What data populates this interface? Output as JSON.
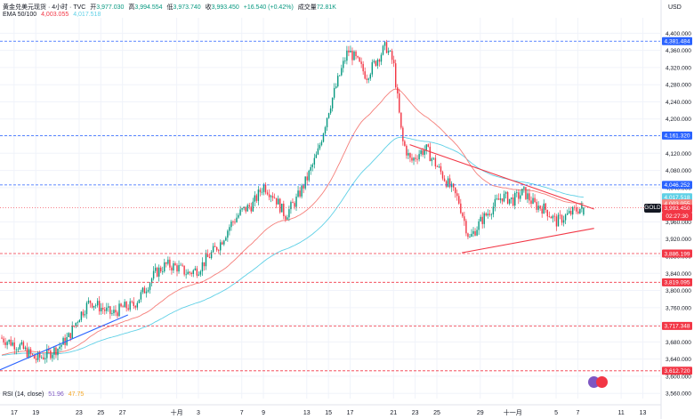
{
  "header": {
    "title": "黄金兑美元现货 · 4小时 · TVC",
    "ohlc": [
      {
        "label": "开",
        "value": "3,977.030"
      },
      {
        "label": "高",
        "value": "3,994.554"
      },
      {
        "label": "低",
        "value": "3,973.740"
      },
      {
        "label": "收",
        "value": "3,993.450"
      }
    ],
    "change": "+16.540 (+0.42%)",
    "volume_label": "成交量",
    "volume": "72.81K",
    "ema_label": "EMA 50/100",
    "ema_50": "4,003.055",
    "ema_100": "4,017.518"
  },
  "currency": "USD",
  "symbol_tag": "GOLD",
  "countdown": "02:27:30",
  "rsi": {
    "label": "RSI (14, close)",
    "value1": "51.96",
    "value2": "47.75"
  },
  "colors": {
    "up": "#089981",
    "down": "#f23645",
    "ema50": "#f57f7a",
    "ema100": "#5fd0e6",
    "blue": "#2962ff"
  },
  "chart_data": {
    "type": "candlestick",
    "y_ticks": [
      "4,400.000",
      "4,360.000",
      "4,320.000",
      "4,280.000",
      "4,240.000",
      "4,200.000",
      "4,160.000",
      "4,120.000",
      "4,080.000",
      "4,040.000",
      "3,960.000",
      "3,920.000",
      "3,880.000",
      "3,840.000",
      "3,800.000",
      "3,760.000",
      "3,720.000",
      "3,680.000",
      "3,640.000",
      "3,600.000",
      "3,560.000"
    ],
    "y_ticks_num": [
      4400,
      4360,
      4320,
      4280,
      4240,
      4200,
      4160,
      4120,
      4080,
      4040,
      3960,
      3920,
      3880,
      3840,
      3800,
      3760,
      3720,
      3680,
      3640,
      3600,
      3560
    ],
    "ylim": [
      3548,
      4436
    ],
    "x_ticks": [
      "17",
      "19",
      "23",
      "25",
      "27",
      "十月",
      "3",
      "7",
      "9",
      "13",
      "15",
      "17",
      "21",
      "23",
      "25",
      "29",
      "十一月",
      "5",
      "7",
      "11",
      "13"
    ],
    "x_ticks_day": [
      -14,
      -12,
      -8,
      -6,
      -4,
      1,
      3,
      7,
      9,
      13,
      15,
      17,
      21,
      23,
      25,
      29,
      32,
      36,
      38,
      42,
      44
    ],
    "xlim": [
      -15.3,
      45.6
    ],
    "price_levels": [
      {
        "value": 4381.484,
        "label": "4,381.484",
        "color": "#2962ff"
      },
      {
        "value": 4161.32,
        "label": "4,161.320",
        "color": "#2962ff"
      },
      {
        "value": 4046.252,
        "label": "4,046.252",
        "color": "#2962ff"
      },
      {
        "value": 3886.199,
        "label": "3,886.199",
        "color": "#f23645"
      },
      {
        "value": 3819.095,
        "label": "3,819.095",
        "color": "#f23645"
      },
      {
        "value": 3717.348,
        "label": "3,717.348",
        "color": "#f23645"
      },
      {
        "value": 3612.72,
        "label": "3,612.720",
        "color": "#f23645"
      }
    ],
    "ema_labels": [
      {
        "value": 4017.518,
        "label": "4,017.518",
        "color": "#5fd0e6"
      },
      {
        "value": 4003.055,
        "label": "4,003.055",
        "color": "#f57f7a"
      }
    ],
    "last_price": {
      "value": 3993.45,
      "label": "3,993.450"
    },
    "close_path": [
      [
        -15.3,
        3690
      ],
      [
        -13.5,
        3670
      ],
      [
        -12.0,
        3640
      ],
      [
        -11.0,
        3650
      ],
      [
        -10.0,
        3665
      ],
      [
        -9.0,
        3690
      ],
      [
        -8.0,
        3740
      ],
      [
        -7.0,
        3775
      ],
      [
        -6.0,
        3760
      ],
      [
        -5.0,
        3745
      ],
      [
        -4.0,
        3760
      ],
      [
        -3.0,
        3765
      ],
      [
        -2.0,
        3800
      ],
      [
        -1.0,
        3840
      ],
      [
        0.0,
        3860
      ],
      [
        1.0,
        3855
      ],
      [
        2.0,
        3840
      ],
      [
        3.0,
        3850
      ],
      [
        4.0,
        3880
      ],
      [
        5.0,
        3910
      ],
      [
        6.0,
        3955
      ],
      [
        7.0,
        3985
      ],
      [
        8.0,
        4000
      ],
      [
        9.0,
        4045
      ],
      [
        10.0,
        4020
      ],
      [
        11.0,
        3975
      ],
      [
        12.0,
        4010
      ],
      [
        13.0,
        4060
      ],
      [
        14.0,
        4120
      ],
      [
        15.0,
        4220
      ],
      [
        16.0,
        4300
      ],
      [
        16.8,
        4360
      ],
      [
        17.5,
        4340
      ],
      [
        18.5,
        4300
      ],
      [
        19.5,
        4340
      ],
      [
        20.3,
        4370
      ],
      [
        21.0,
        4330
      ],
      [
        21.8,
        4150
      ],
      [
        22.6,
        4100
      ],
      [
        23.3,
        4120
      ],
      [
        24.0,
        4130
      ],
      [
        25.0,
        4090
      ],
      [
        26.0,
        4050
      ],
      [
        27.0,
        4010
      ],
      [
        28.0,
        3920
      ],
      [
        29.0,
        3960
      ],
      [
        30.0,
        3990
      ],
      [
        31.0,
        4020
      ],
      [
        32.0,
        4010
      ],
      [
        33.0,
        4030
      ],
      [
        34.0,
        4000
      ],
      [
        35.0,
        3990
      ],
      [
        36.0,
        3960
      ],
      [
        37.0,
        3975
      ],
      [
        38.0,
        3990
      ],
      [
        38.6,
        3993.45
      ]
    ],
    "trendlines": [
      {
        "from": [
          -15.3,
          3615
        ],
        "to": [
          -3.5,
          3743
        ],
        "color": "#2962ff"
      },
      {
        "from": [
          27.3,
          3888
        ],
        "to": [
          39.5,
          3945
        ],
        "color": "#f23645"
      },
      {
        "from": [
          22.5,
          4140
        ],
        "to": [
          39.5,
          3990
        ],
        "color": "#f23645"
      }
    ]
  }
}
